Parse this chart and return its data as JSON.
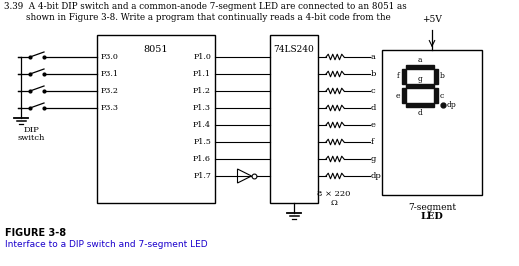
{
  "title_line1": "3.39  A 4-bit DIP switch and a common-anode 7-segment LED are connected to an 8051 as",
  "title_line2": "        shown in Figure 3-8. Write a program that continually reads a 4-bit code from the",
  "fig_label": "FIGURE 3-8",
  "fig_caption": "Interface to a DIP switch and 7-segment LED",
  "bg_color": "#ffffff",
  "text_color": "#000000",
  "blue_color": "#1a00cc",
  "box_8051_label": "8051",
  "box_74ls_label": "74LS240",
  "plus5v": "+5V",
  "dip_label": "DIP",
  "switch_label": "switch",
  "resistor_label": "8 × 220",
  "ohm_label": "Ω",
  "seg_label_1": "7-segment",
  "seg_label_2": "LED",
  "p3_pins": [
    "P3.0",
    "P3.1",
    "P3.2",
    "P3.3"
  ],
  "p1_pins": [
    "P1.0",
    "P1.1",
    "P1.2",
    "P1.3",
    "P1.4",
    "P1.5",
    "P1.6",
    "P1.7"
  ],
  "seg_pins": [
    "a",
    "b",
    "c",
    "d",
    "e",
    "f",
    "g",
    "dp"
  ]
}
